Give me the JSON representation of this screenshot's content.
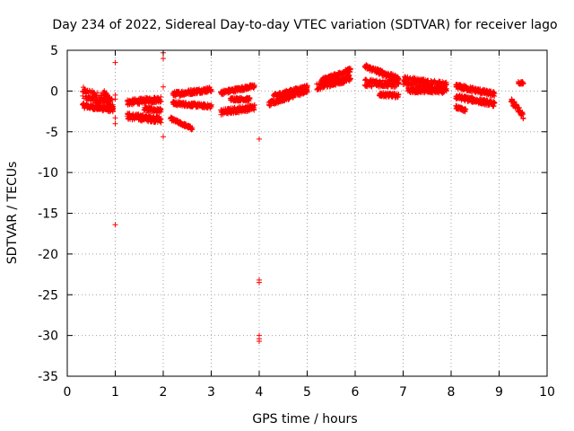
{
  "chart_data": {
    "type": "scatter",
    "title": "Day 234 of 2022, Sidereal Day-to-day VTEC variation (SDTVAR) for receiver lago",
    "xlabel": "GPS time / hours",
    "ylabel": "SDTVAR / TECUs",
    "xlim": [
      0,
      10
    ],
    "ylim": [
      -35,
      5
    ],
    "xticks": [
      0,
      1,
      2,
      3,
      4,
      5,
      6,
      7,
      8,
      9,
      10
    ],
    "yticks": [
      5,
      0,
      -5,
      -10,
      -15,
      -20,
      -25,
      -30,
      -35
    ],
    "xtick_labels": [
      "0",
      "1",
      "2",
      "3",
      "4",
      "5",
      "6",
      "7",
      "8",
      "9",
      "10"
    ],
    "ytick_labels": [
      "5",
      "0",
      "-5",
      "-10",
      "-15",
      "-20",
      "-25",
      "-30",
      "-35"
    ],
    "grid": true,
    "marker": "+",
    "color": "#ff0000",
    "series": [
      {
        "name": "lago",
        "tracks": [
          {
            "x0": 0.32,
            "x1": 0.95,
            "y0": -0.3,
            "y1": -1.6,
            "band": 1.6
          },
          {
            "x0": 0.32,
            "x1": 0.95,
            "y0": -1.8,
            "y1": -2.3,
            "band": 0.6
          },
          {
            "x0": 0.75,
            "x1": 0.95,
            "y0": -0.3,
            "y1": -2.0,
            "band": 1.2
          },
          {
            "x0": 1.25,
            "x1": 1.95,
            "y0": -1.4,
            "y1": -1.0,
            "band": 0.7
          },
          {
            "x0": 1.25,
            "x1": 1.95,
            "y0": -3.1,
            "y1": -3.5,
            "band": 0.8
          },
          {
            "x0": 1.6,
            "x1": 1.95,
            "y0": -2.2,
            "y1": -2.4,
            "band": 0.5
          },
          {
            "x0": 2.15,
            "x1": 2.6,
            "y0": -3.4,
            "y1": -4.6,
            "band": 0.4
          },
          {
            "x0": 2.2,
            "x1": 3.0,
            "y0": -0.4,
            "y1": 0.2,
            "band": 0.6
          },
          {
            "x0": 2.2,
            "x1": 3.0,
            "y0": -1.5,
            "y1": -1.9,
            "band": 0.5
          },
          {
            "x0": 3.2,
            "x1": 3.9,
            "y0": -0.2,
            "y1": 0.6,
            "band": 0.5
          },
          {
            "x0": 3.2,
            "x1": 3.9,
            "y0": -2.6,
            "y1": -2.0,
            "band": 0.7
          },
          {
            "x0": 3.4,
            "x1": 3.8,
            "y0": -1.0,
            "y1": -1.0,
            "band": 0.4
          },
          {
            "x0": 4.2,
            "x1": 5.0,
            "y0": -1.6,
            "y1": 0.1,
            "band": 0.6
          },
          {
            "x0": 4.3,
            "x1": 5.0,
            "y0": -0.6,
            "y1": 0.5,
            "band": 0.5
          },
          {
            "x0": 5.2,
            "x1": 5.9,
            "y0": 0.5,
            "y1": 1.6,
            "band": 0.8
          },
          {
            "x0": 5.3,
            "x1": 5.9,
            "y0": 1.3,
            "y1": 2.6,
            "band": 0.5
          },
          {
            "x0": 6.2,
            "x1": 6.9,
            "y0": 3.0,
            "y1": 1.5,
            "band": 0.6
          },
          {
            "x0": 6.2,
            "x1": 6.9,
            "y0": 1.0,
            "y1": 0.9,
            "band": 0.9
          },
          {
            "x0": 6.5,
            "x1": 6.9,
            "y0": -0.4,
            "y1": -0.6,
            "band": 0.5
          },
          {
            "x0": 7.0,
            "x1": 7.9,
            "y0": 1.3,
            "y1": 0.6,
            "band": 1.0
          },
          {
            "x0": 7.1,
            "x1": 7.9,
            "y0": 0.1,
            "y1": 0.0,
            "band": 0.6
          },
          {
            "x0": 8.1,
            "x1": 8.9,
            "y0": 0.6,
            "y1": -0.4,
            "band": 0.6
          },
          {
            "x0": 8.1,
            "x1": 8.9,
            "y0": -0.7,
            "y1": -1.6,
            "band": 0.6
          },
          {
            "x0": 8.1,
            "x1": 8.3,
            "y0": -2.0,
            "y1": -2.4,
            "band": 0.4
          },
          {
            "x0": 9.25,
            "x1": 9.5,
            "y0": -1.2,
            "y1": -3.0,
            "band": 0.8
          },
          {
            "x0": 9.4,
            "x1": 9.5,
            "y0": 1.0,
            "y1": 1.0,
            "band": 0.3
          }
        ],
        "outliers": [
          [
            1.0,
            3.5
          ],
          [
            1.0,
            -0.5
          ],
          [
            1.0,
            -1.0
          ],
          [
            1.0,
            -3.3
          ],
          [
            1.0,
            -4.0
          ],
          [
            1.0,
            -16.4
          ],
          [
            2.0,
            4.7
          ],
          [
            2.0,
            4.0
          ],
          [
            2.0,
            0.5
          ],
          [
            2.0,
            -5.6
          ],
          [
            4.0,
            -5.9
          ],
          [
            4.0,
            -23.2
          ],
          [
            4.0,
            -23.5
          ],
          [
            4.0,
            -30.0
          ],
          [
            4.0,
            -30.4
          ],
          [
            4.0,
            -30.7
          ]
        ]
      }
    ]
  }
}
